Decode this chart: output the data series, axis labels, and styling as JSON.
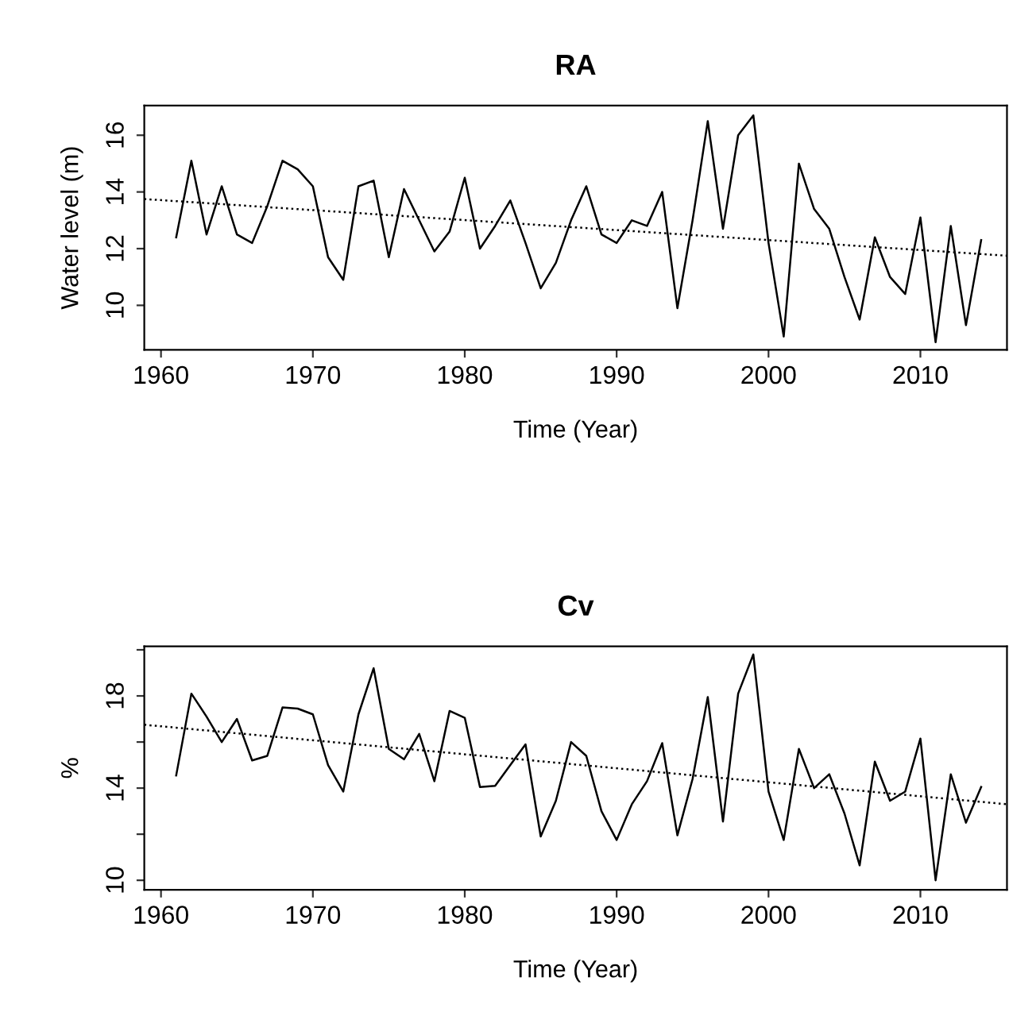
{
  "chart_data": [
    {
      "type": "line",
      "title": "RA",
      "xlabel": "Time (Year)",
      "ylabel": "Water level (m)",
      "xlim": [
        1958.9,
        2015.7
      ],
      "ylim": [
        8.43,
        17.05
      ],
      "xticks": [
        1960,
        1970,
        1980,
        1990,
        2000,
        2010
      ],
      "yticks": [
        10,
        12,
        14,
        16
      ],
      "grid": false,
      "marker": "none",
      "series": [
        {
          "color": "#000000",
          "line_style": "solid",
          "x": [
            1961,
            1962,
            1963,
            1964,
            1965,
            1966,
            1967,
            1968,
            1969,
            1970,
            1971,
            1972,
            1973,
            1974,
            1975,
            1976,
            1977,
            1978,
            1979,
            1980,
            1981,
            1982,
            1983,
            1984,
            1985,
            1986,
            1987,
            1988,
            1989,
            1990,
            1991,
            1992,
            1993,
            1994,
            1995,
            1996,
            1997,
            1998,
            1999,
            2000,
            2001,
            2002,
            2003,
            2004,
            2005,
            2006,
            2007,
            2008,
            2009,
            2010,
            2011,
            2012,
            2013,
            2014
          ],
          "values": [
            12.4,
            15.1,
            12.5,
            14.2,
            12.5,
            12.2,
            13.5,
            15.1,
            14.8,
            14.2,
            11.7,
            10.9,
            14.2,
            14.4,
            11.7,
            14.1,
            13.0,
            11.9,
            12.6,
            14.5,
            12.0,
            12.8,
            13.7,
            12.2,
            10.6,
            11.5,
            13.0,
            14.2,
            12.5,
            12.2,
            13.0,
            12.8,
            14.0,
            9.9,
            13.0,
            16.5,
            12.7,
            16.0,
            16.7,
            12.2,
            8.9,
            15.0,
            13.4,
            12.7,
            11.0,
            9.5,
            12.4,
            11.0,
            10.4,
            13.1,
            8.7,
            12.8,
            9.3,
            12.3
          ]
        },
        {
          "color": "#000000",
          "line_style": "dotted",
          "x": [
            1958.9,
            2015.7
          ],
          "values": [
            13.75,
            11.75
          ]
        }
      ]
    },
    {
      "type": "line",
      "title": "Cv",
      "xlabel": "Time (Year)",
      "ylabel": "%",
      "xlim": [
        1958.9,
        2015.7
      ],
      "ylim": [
        9.59,
        20.15
      ],
      "xticks": [
        1960,
        1970,
        1980,
        1990,
        2000,
        2010
      ],
      "yticks": [
        10,
        {
          "value": 12,
          "label": null
        },
        14,
        {
          "value": 16,
          "label": null
        },
        18,
        {
          "value": 20,
          "label": null
        }
      ],
      "grid": false,
      "marker": "none",
      "series": [
        {
          "color": "#000000",
          "line_style": "solid",
          "x": [
            1961,
            1962,
            1963,
            1964,
            1965,
            1966,
            1967,
            1968,
            1969,
            1970,
            1971,
            1972,
            1973,
            1974,
            1975,
            1976,
            1977,
            1978,
            1979,
            1980,
            1981,
            1982,
            1983,
            1984,
            1985,
            1986,
            1987,
            1988,
            1989,
            1990,
            1991,
            1992,
            1993,
            1994,
            1995,
            1996,
            1997,
            1998,
            1999,
            2000,
            2001,
            2002,
            2003,
            2004,
            2005,
            2006,
            2007,
            2008,
            2009,
            2010,
            2011,
            2012,
            2013,
            2014
          ],
          "values": [
            14.55,
            18.1,
            17.1,
            16.0,
            17.0,
            15.2,
            15.4,
            17.5,
            17.45,
            17.2,
            15.0,
            13.85,
            17.2,
            19.2,
            15.7,
            15.25,
            16.35,
            14.3,
            17.35,
            17.05,
            14.05,
            14.1,
            15.0,
            15.9,
            11.9,
            13.45,
            16.0,
            15.4,
            13.0,
            11.75,
            13.3,
            14.3,
            15.95,
            11.95,
            14.4,
            17.95,
            12.55,
            18.1,
            19.8,
            13.85,
            11.75,
            15.7,
            14.0,
            14.6,
            12.9,
            10.65,
            15.15,
            13.45,
            13.85,
            16.15,
            10.0,
            14.6,
            12.5,
            14.05
          ]
        },
        {
          "color": "#000000",
          "line_style": "dotted",
          "x": [
            1958.9,
            2015.7
          ],
          "values": [
            16.75,
            13.3
          ]
        }
      ]
    }
  ]
}
